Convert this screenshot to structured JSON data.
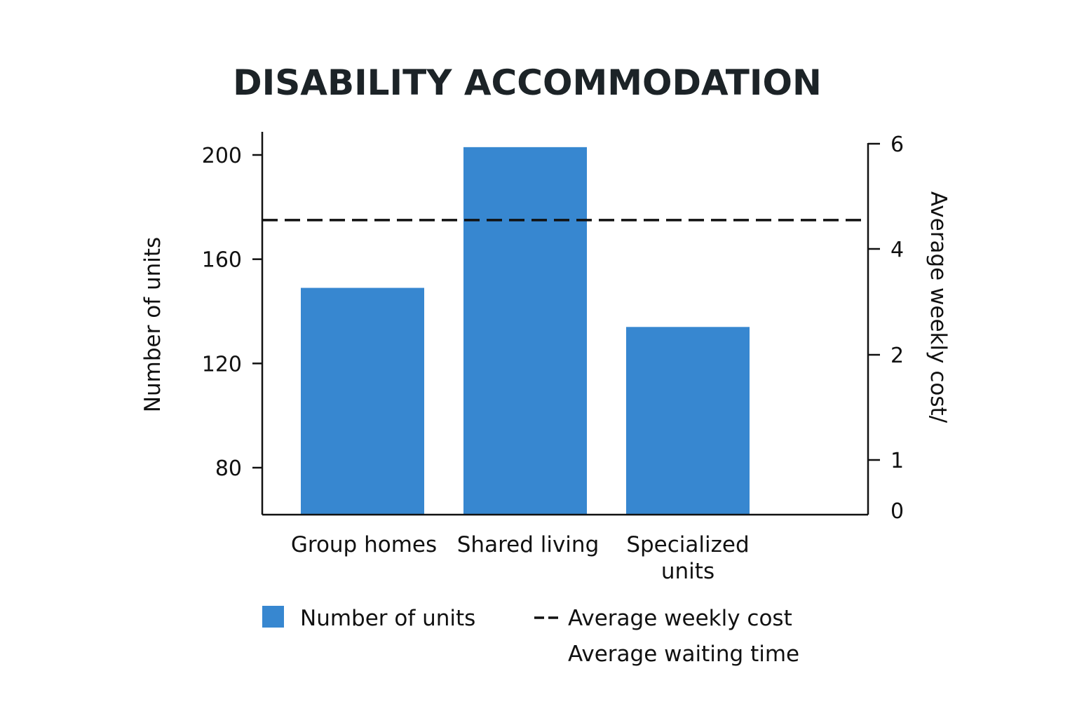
{
  "chart_data": {
    "type": "bar",
    "title": "DISABILITY ACCOMMODATION",
    "ylabel": "Number of units",
    "y2label": "Average weekly cost/",
    "categories": [
      [
        "Group homes"
      ],
      [
        "Shared living"
      ],
      [
        "Specialized",
        "units"
      ]
    ],
    "series": [
      {
        "name": "Number of units",
        "type": "bar",
        "axis": "left",
        "color": "#3787d0",
        "values": [
          149,
          203,
          134
        ]
      },
      {
        "name": "Average weekly cost",
        "type": "line",
        "style": "dashed",
        "axis": "left",
        "color": "#111111",
        "values": [
          175,
          175,
          175
        ]
      }
    ],
    "yticks": [
      80,
      120,
      160,
      200
    ],
    "ylim": [
      62.5,
      209
    ],
    "y2ticks": [
      {
        "label": "6",
        "value": 6
      },
      {
        "label": "4",
        "value": 4
      },
      {
        "label": "2",
        "value": 2
      },
      {
        "label": "1",
        "value": 1
      },
      {
        "label": "0",
        "value": 0
      }
    ],
    "legend": {
      "placement": "bottom",
      "entries": [
        {
          "label": "Number of units",
          "marker": "square",
          "color": "#3787d0"
        },
        {
          "label": "Average weekly cost",
          "marker": "dashed-line",
          "color": "#111111"
        },
        {
          "label": "Average waiting time",
          "marker": "none"
        }
      ]
    },
    "grid": false
  }
}
